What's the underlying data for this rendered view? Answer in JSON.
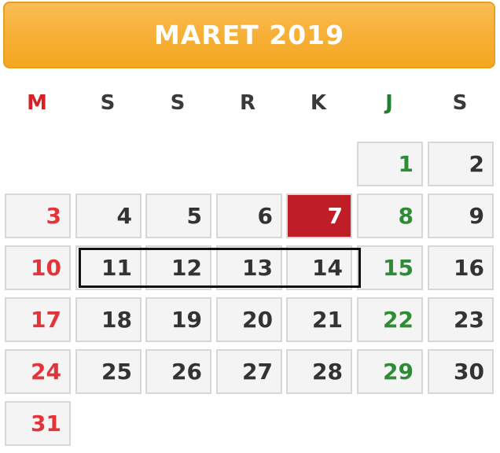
{
  "header": {
    "title": "MARET 2019"
  },
  "weekdays": [
    "M",
    "S",
    "S",
    "R",
    "K",
    "J",
    "S"
  ],
  "days": [
    "1",
    "2",
    "3",
    "4",
    "5",
    "6",
    "7",
    "8",
    "9",
    "10",
    "11",
    "12",
    "13",
    "14",
    "15",
    "16",
    "17",
    "18",
    "19",
    "20",
    "21",
    "22",
    "23",
    "24",
    "25",
    "26",
    "27",
    "28",
    "29",
    "30",
    "31"
  ],
  "first_weekday_index": 5,
  "today": "7",
  "highlighted_days": [
    "11",
    "12",
    "13",
    "14"
  ],
  "colors": {
    "sunday": "#e3343a",
    "friday": "#2e8b36",
    "today_bg": "#bf1e26",
    "header": "#f7b13a"
  }
}
